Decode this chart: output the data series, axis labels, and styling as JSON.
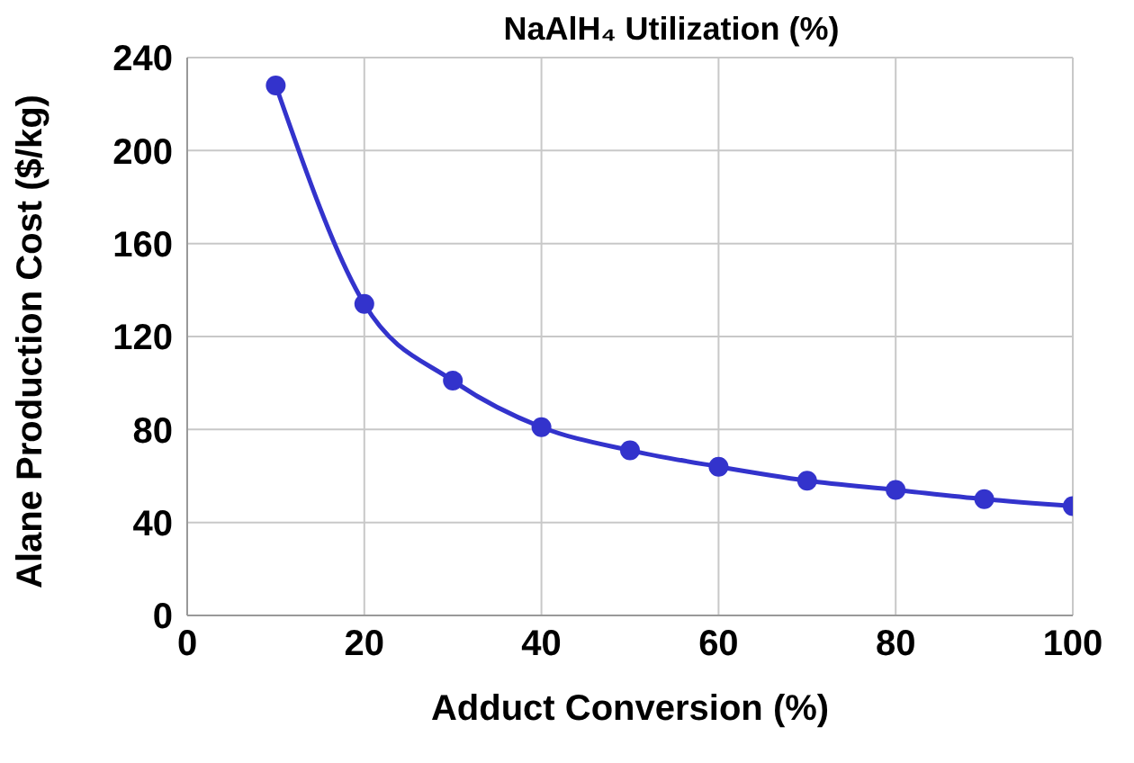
{
  "chart_data": {
    "type": "line",
    "title": "NaAlH₄ Utilization (%)",
    "xlabel": "Adduct Conversion (%)",
    "ylabel": "Alane Production Cost ($/kg)",
    "x": [
      10,
      20,
      30,
      40,
      50,
      60,
      70,
      80,
      90,
      100
    ],
    "series": [
      {
        "color": "#3333cc",
        "values": [
          228,
          134,
          101,
          81,
          71,
          64,
          58,
          54,
          50,
          47
        ]
      }
    ],
    "xlim": [
      0,
      100
    ],
    "xticks": [
      0,
      20,
      40,
      60,
      80,
      100
    ],
    "ylim": [
      0,
      240
    ],
    "yticks": [
      0,
      40,
      80,
      120,
      160,
      200,
      240
    ],
    "grid": true,
    "marker": "circle",
    "line_style": "solid",
    "legend": false
  }
}
